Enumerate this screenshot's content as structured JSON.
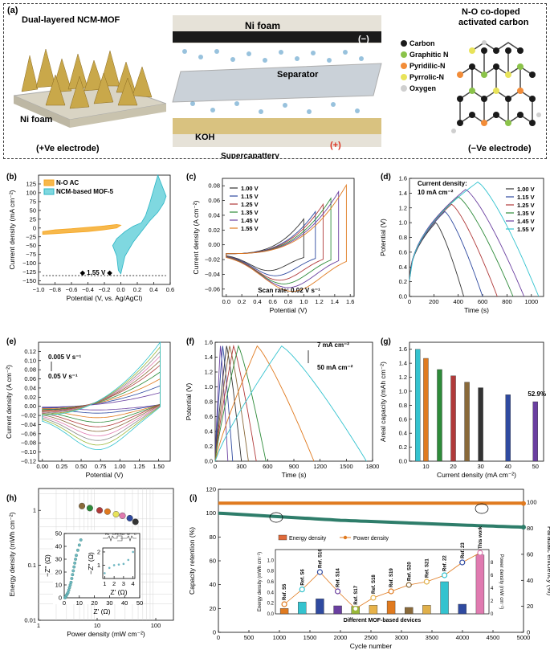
{
  "panel_a": {
    "panel_label": "(a)",
    "left_title": "Dual-layered NCM-MOF",
    "left_foam": "Ni foam",
    "left_electrode": "(+Ve electrode)",
    "center_foam": "Ni foam",
    "minus": "(−)",
    "separator": "Separator",
    "koh": "KOH",
    "supercapattery": "Supercapattery",
    "plus": "(+)",
    "right_title_1": "N-O co-doped",
    "right_title_2": "activated carbon",
    "right_electrode": "(−Ve electrode)",
    "legend": [
      {
        "label": "Carbon",
        "color": "#1a1a1a"
      },
      {
        "label": "Graphitic N",
        "color": "#8bc34a"
      },
      {
        "label": "Pyridilic-N",
        "color": "#f28c38"
      },
      {
        "label": "Pyrrolic-N",
        "color": "#e8e35a"
      },
      {
        "label": "Oxygen",
        "color": "#cfcfcf"
      }
    ],
    "colors": {
      "mof": "#c9a84a",
      "foam": "#d9d4c4",
      "ball": "#7fb3d5",
      "carbon": "#1a1a1a"
    }
  },
  "chart_data": [
    {
      "panel": "(b)",
      "type": "line",
      "xlabel": "Potential (V, vs. Ag/AgCl)",
      "ylabel": "Current density (mA cm⁻²)",
      "xlim": [
        -1.0,
        0.6
      ],
      "ylim": [
        -160,
        150
      ],
      "xticks": [
        -1.0,
        -0.8,
        -0.6,
        -0.4,
        -0.2,
        0.0,
        0.2,
        0.4,
        0.6
      ],
      "xticklabels": [
        "−1.0",
        "−0.8",
        "−0.6",
        "−0.4",
        "−0.2",
        "0.0",
        "0.2",
        "0.4",
        "0.6"
      ],
      "yticks": [
        -150,
        -125,
        -100,
        -75,
        -50,
        -25,
        0,
        25,
        50,
        75,
        100,
        125
      ],
      "yticklabels": [
        "−150",
        "−125",
        "−100",
        "−75",
        "−50",
        "−25",
        "0",
        "25",
        "50",
        "75",
        "100",
        "125"
      ],
      "legend": "top-left",
      "annotation": "1.55 V",
      "series": [
        {
          "name": "N-O AC",
          "color": "#f5a623",
          "fill": "#f7b84b",
          "x": [
            -0.95,
            -0.8,
            -0.6,
            -0.4,
            -0.2,
            -0.05,
            0.0,
            -0.05,
            -0.2,
            -0.4,
            -0.6,
            -0.8,
            -0.95
          ],
          "y": [
            -10,
            -5,
            -2,
            2,
            6,
            10,
            8,
            0,
            -5,
            -10,
            -13,
            -16,
            -18
          ]
        },
        {
          "name": "NCM-based MOF-5",
          "color": "#2bb5c5",
          "fill": "#7fd8e0",
          "x": [
            -0.05,
            0.05,
            0.15,
            0.25,
            0.3,
            0.35,
            0.4,
            0.45,
            0.5,
            0.55,
            0.52,
            0.45,
            0.35,
            0.25,
            0.15,
            0.05,
            0.0,
            -0.03,
            -0.05,
            -0.1,
            -0.05
          ],
          "y": [
            -30,
            -10,
            5,
            15,
            35,
            70,
            110,
            150,
            120,
            90,
            70,
            45,
            20,
            -10,
            -40,
            -80,
            -130,
            -120,
            -80,
            -50,
            -30
          ]
        }
      ]
    },
    {
      "panel": "(c)",
      "type": "line",
      "xlabel": "Potential (V)",
      "ylabel": "Current density (A cm⁻²)",
      "xlim": [
        -0.05,
        1.65
      ],
      "ylim": [
        -0.07,
        0.09
      ],
      "xticks": [
        0.0,
        0.2,
        0.4,
        0.6,
        0.8,
        1.0,
        1.2,
        1.4,
        1.6
      ],
      "xticklabels": [
        "0.0",
        "0.2",
        "0.4",
        "0.6",
        "0.8",
        "1.0",
        "1.2",
        "1.4",
        "1.6"
      ],
      "yticks": [
        -0.06,
        -0.04,
        -0.02,
        0.0,
        0.02,
        0.04,
        0.06,
        0.08
      ],
      "yticklabels": [
        "−0.06",
        "−0.04",
        "−0.02",
        "0.00",
        "0.02",
        "0.04",
        "0.06",
        "0.08"
      ],
      "legend": "top-left",
      "annotation": "Scan rate: 0.02 V s⁻¹",
      "series": [
        {
          "name": "1.00 V",
          "color": "#333333",
          "vmax": 1.0,
          "imax": 0.035,
          "imin": -0.035
        },
        {
          "name": "1.15 V",
          "color": "#2f4aa0",
          "vmax": 1.15,
          "imax": 0.045,
          "imin": -0.042
        },
        {
          "name": "1.25 V",
          "color": "#b13a3a",
          "vmax": 1.25,
          "imax": 0.055,
          "imin": -0.048
        },
        {
          "name": "1.35 V",
          "color": "#2e8b3a",
          "vmax": 1.35,
          "imax": 0.063,
          "imin": -0.053
        },
        {
          "name": "1.45 V",
          "color": "#6a3fa0",
          "vmax": 1.45,
          "imax": 0.072,
          "imin": -0.058
        },
        {
          "name": "1.55 V",
          "color": "#e07a1f",
          "vmax": 1.55,
          "imax": 0.081,
          "imin": -0.063
        }
      ]
    },
    {
      "panel": "(d)",
      "type": "line",
      "xlabel": "Time (s)",
      "ylabel": "Potential (V)",
      "xlim": [
        0,
        1100
      ],
      "ylim": [
        0,
        1.6
      ],
      "xticks": [
        0,
        200,
        400,
        600,
        800,
        1000
      ],
      "xticklabels": [
        "0",
        "200",
        "400",
        "600",
        "800",
        "1000"
      ],
      "yticks": [
        0.0,
        0.2,
        0.4,
        0.6,
        0.8,
        1.0,
        1.2,
        1.4,
        1.6
      ],
      "yticklabels": [
        "0.0",
        "0.2",
        "0.4",
        "0.6",
        "0.8",
        "1.0",
        "1.2",
        "1.4",
        "1.6"
      ],
      "legend": "top-right",
      "annotation_1": "Current density:",
      "annotation_2": "10 mA cm⁻²",
      "series": [
        {
          "name": "1.00 V",
          "color": "#333333",
          "vmax": 1.0,
          "tpeak": 215,
          "tend": 445
        },
        {
          "name": "1.15 V",
          "color": "#2f4aa0",
          "vmax": 1.15,
          "tpeak": 290,
          "tend": 600
        },
        {
          "name": "1.25 V",
          "color": "#b13a3a",
          "vmax": 1.25,
          "tpeak": 345,
          "tend": 720
        },
        {
          "name": "1.35 V",
          "color": "#2e8b3a",
          "vmax": 1.35,
          "tpeak": 400,
          "tend": 850
        },
        {
          "name": "1.45 V",
          "color": "#6a3fa0",
          "vmax": 1.45,
          "tpeak": 460,
          "tend": 940
        },
        {
          "name": "1.55 V",
          "color": "#34c3cf",
          "vmax": 1.55,
          "tpeak": 560,
          "tend": 1060
        }
      ]
    },
    {
      "panel": "(e)",
      "type": "line",
      "xlabel": "Potential (V)",
      "ylabel": "Current density (A cm⁻²)",
      "xlim": [
        -0.05,
        1.65
      ],
      "ylim": [
        -0.12,
        0.14
      ],
      "xticks": [
        0.0,
        0.25,
        0.5,
        0.75,
        1.0,
        1.25,
        1.5
      ],
      "xticklabels": [
        "0.00",
        "0.25",
        "0.50",
        "0.75",
        "1.00",
        "1.25",
        "1.50"
      ],
      "yticks": [
        -0.12,
        -0.1,
        -0.08,
        -0.06,
        -0.04,
        -0.02,
        0.0,
        0.02,
        0.04,
        0.06,
        0.08,
        0.1,
        0.12
      ],
      "yticklabels": [
        "−0.12",
        "−0.10",
        "−0.08",
        "−0.06",
        "−0.04",
        "−0.02",
        "0.00",
        "0.02",
        "0.04",
        "0.06",
        "0.08",
        "0.10",
        "0.12"
      ],
      "legend_top": "0.005 V s⁻¹",
      "legend_bottom": "0.05 V s⁻¹",
      "series": [
        {
          "color": "#6a3fa0",
          "imax": 0.03,
          "imin": -0.008
        },
        {
          "color": "#2f4aa0",
          "imax": 0.045,
          "imin": -0.015
        },
        {
          "color": "#e07a1f",
          "imax": 0.06,
          "imin": -0.025
        },
        {
          "color": "#2e8b3a",
          "imax": 0.075,
          "imin": -0.035
        },
        {
          "color": "#b13a3a",
          "imax": 0.09,
          "imin": -0.045
        },
        {
          "color": "#8a6a3a",
          "imax": 0.1,
          "imin": -0.055
        },
        {
          "color": "#e07ab0",
          "imax": 0.11,
          "imin": -0.065
        },
        {
          "color": "#888888",
          "imax": 0.12,
          "imin": -0.075
        },
        {
          "color": "#9ab83a",
          "imax": 0.13,
          "imin": -0.085
        },
        {
          "color": "#34c3cf",
          "imax": 0.14,
          "imin": -0.095
        }
      ]
    },
    {
      "panel": "(f)",
      "type": "line",
      "xlabel": "Time (s)",
      "ylabel": "Potential (V)",
      "xlim": [
        0,
        1800
      ],
      "ylim": [
        0,
        1.6
      ],
      "xticks": [
        0,
        300,
        600,
        900,
        1200,
        1500,
        1800
      ],
      "xticklabels": [
        "0",
        "300",
        "600",
        "900",
        "1200",
        "1500",
        "1800"
      ],
      "yticks": [
        0.0,
        0.2,
        0.4,
        0.6,
        0.8,
        1.0,
        1.2,
        1.4,
        1.6
      ],
      "yticklabels": [
        "0.0",
        "0.2",
        "0.4",
        "0.6",
        "0.8",
        "1.0",
        "1.2",
        "1.4",
        "1.6"
      ],
      "legend_top": "7 mA cm⁻²",
      "legend_bottom": "50 mA cm⁻²",
      "series": [
        {
          "color": "#6a3fa0",
          "tpeak": 60,
          "tend": 145
        },
        {
          "color": "#2f4aa0",
          "tpeak": 85,
          "tend": 200
        },
        {
          "color": "#333333",
          "tpeak": 130,
          "tend": 300
        },
        {
          "color": "#8a6a3a",
          "tpeak": 165,
          "tend": 380
        },
        {
          "color": "#b13a3a",
          "tpeak": 210,
          "tend": 470
        },
        {
          "color": "#2e8b3a",
          "tpeak": 265,
          "tend": 580
        },
        {
          "color": "#e07a1f",
          "tpeak": 480,
          "tend": 1130
        },
        {
          "color": "#34c3cf",
          "tpeak": 760,
          "tend": 1730
        }
      ]
    },
    {
      "panel": "(g)",
      "type": "bar",
      "xlabel": "Current density (mA cm⁻²)",
      "ylabel": "Areal capacity (mAh cm⁻²)",
      "xlim": [
        4,
        53
      ],
      "ylim": [
        0,
        1.7
      ],
      "xticks": [
        10,
        20,
        30,
        40,
        50
      ],
      "xticklabels": [
        "10",
        "20",
        "30",
        "40",
        "50"
      ],
      "yticks": [
        0.0,
        0.2,
        0.4,
        0.6,
        0.8,
        1.0,
        1.2,
        1.4,
        1.6
      ],
      "yticklabels": [
        "0.0",
        "0.2",
        "0.4",
        "0.6",
        "0.8",
        "1.0",
        "1.2",
        "1.4",
        "1.6"
      ],
      "annotation": "52.9%",
      "x": [
        7,
        10,
        15,
        20,
        25,
        30,
        40,
        50
      ],
      "values": [
        1.6,
        1.47,
        1.31,
        1.22,
        1.13,
        1.05,
        0.95,
        0.85
      ],
      "colors": [
        "#34c3cf",
        "#e07a1f",
        "#2e8b3a",
        "#b13a3a",
        "#8a6a3a",
        "#333333",
        "#2f4aa0",
        "#6a3fa0"
      ]
    },
    {
      "panel": "(h)",
      "type": "scatter",
      "xlabel": "Power density (mW cm⁻²)",
      "ylabel": "Energy density (mWh cm⁻²)",
      "xscale": "log",
      "yscale": "log",
      "xlim": [
        1,
        200
      ],
      "ylim": [
        0.01,
        2.5
      ],
      "xticks": [
        1,
        10,
        100
      ],
      "xticklabels": [
        "1",
        "10",
        "100"
      ],
      "yticks": [
        0.01,
        0.1,
        1
      ],
      "yticklabels": [
        "0.01",
        "0.1",
        "1"
      ],
      "x": [
        5.5,
        7.5,
        11,
        15,
        21,
        27,
        36,
        45
      ],
      "y": [
        1.2,
        1.1,
        1.0,
        0.95,
        0.85,
        0.8,
        0.72,
        0.62
      ],
      "colors": [
        "#8a6a3a",
        "#2e8b3a",
        "#b13a3a",
        "#e07a1f",
        "#e8e35a",
        "#e07ab0",
        "#2f4aa0",
        "#333333"
      ],
      "inset": {
        "xlabel": "Z' (Ω)",
        "ylabel": "−Z'' (Ω)",
        "xlim": [
          0,
          50
        ],
        "ylim": [
          0,
          50
        ],
        "xticks": [
          0,
          10,
          20,
          30,
          40,
          50
        ],
        "xticklabels": [
          "0",
          "10",
          "20",
          "30",
          "40",
          "50"
        ],
        "yticks": [
          0,
          10,
          20,
          30,
          40,
          50
        ],
        "yticklabels": [
          "0",
          "10",
          "20",
          "30",
          "40",
          "50"
        ],
        "x": [
          0.5,
          1,
          1.5,
          2,
          2.5,
          3,
          3.5,
          4,
          4.5,
          5,
          5.5,
          6,
          6.5,
          7,
          7.5,
          8,
          9,
          10,
          11
        ],
        "y": [
          0,
          1,
          2,
          3,
          4,
          6,
          8,
          10,
          12,
          15,
          18,
          21,
          24,
          27,
          30,
          33,
          37,
          41,
          45
        ],
        "zoom": {
          "xlabel": "Z' (Ω)",
          "ylabel": "−Z'' (Ω)",
          "xticks": [
            1,
            2,
            3,
            4
          ],
          "xticklabels": [
            "1",
            "2",
            "3",
            "4"
          ],
          "yticks": [
            1,
            2
          ],
          "yticklabels": [
            "1",
            "2"
          ],
          "x": [
            1.0,
            1.5,
            2.0,
            2.5,
            3.0,
            3.5,
            4.0
          ],
          "y": [
            0.4,
            0.8,
            1.0,
            1.05,
            1.1,
            1.4,
            2.0
          ]
        },
        "circuit_labels": [
          "Rs",
          "CPE",
          "Rct",
          "W",
          "C"
        ]
      }
    },
    {
      "panel": "(i)",
      "type": "scatter",
      "xlabel": "Cycle number",
      "ylabel_left": "Capacity retention (%)",
      "ylabel_right": "Faradaic efficiency (%)",
      "xlim": [
        0,
        5000
      ],
      "ylim_left": [
        0,
        120
      ],
      "ylim_right": [
        0,
        110
      ],
      "xticks": [
        0,
        500,
        1000,
        1500,
        2000,
        2500,
        3000,
        3500,
        4000,
        4500,
        5000
      ],
      "xticklabels": [
        "0",
        "500",
        "1000",
        "1500",
        "2000",
        "2500",
        "3000",
        "3500",
        "4000",
        "4500",
        "5000"
      ],
      "yticks_left": [
        0,
        20,
        40,
        60,
        80,
        100,
        120
      ],
      "yticklabels_left": [
        "0",
        "20",
        "40",
        "60",
        "80",
        "100",
        "120"
      ],
      "yticks_right": [
        0,
        20,
        40,
        60,
        80,
        100
      ],
      "yticklabels_right": [
        "0",
        "20",
        "40",
        "60",
        "80",
        "100"
      ],
      "series": [
        {
          "color": "#2e7d6a",
          "x": [
            0,
            1000,
            2000,
            3000,
            4000,
            5000
          ],
          "y": [
            100,
            97,
            94,
            92,
            90,
            88.2
          ]
        },
        {
          "color": "#e07a1f",
          "x": [
            0,
            1000,
            2000,
            3000,
            4000,
            5000
          ],
          "y": [
            99.5,
            99.4,
            99.3,
            99.2,
            99.2,
            99.1
          ]
        }
      ],
      "inset": {
        "xlabel": "Different MOF-based devices",
        "ylabel_left": "Energy density (mWh cm⁻²)",
        "ylabel_right": "Power density (mW cm⁻²)",
        "legend": [
          "Energy density",
          "Power density"
        ],
        "categories": [
          "Ref. S5",
          "Ref. S6",
          "Ref. S16",
          "Ref. S14",
          "Ref. S17",
          "Ref. S18",
          "Ref. S19",
          "Ref. S20",
          "Ref. S21",
          "Ref. 22",
          "Ref. 23",
          "This work"
        ],
        "energy": [
          0.1,
          0.22,
          0.28,
          0.15,
          0.14,
          0.16,
          0.24,
          0.12,
          0.16,
          0.6,
          0.18,
          1.1
        ],
        "power": [
          1.5,
          3.8,
          6.5,
          3.5,
          0.8,
          2.5,
          3.5,
          4.5,
          5.0,
          6.0,
          8.0,
          9.5
        ],
        "ylim_left": [
          0,
          1.2
        ],
        "ylim_right": [
          0,
          10
        ],
        "yticks_left": [
          0,
          0.2,
          0.4,
          0.6,
          0.8,
          1.0
        ],
        "yticklabels_left": [
          "0.0",
          "0.2",
          "0.4",
          "0.6",
          "0.8",
          "1.0"
        ],
        "yticks_right": [
          0,
          2,
          4,
          6,
          8
        ],
        "yticklabels_right": [
          "0",
          "2",
          "4",
          "6",
          "8"
        ],
        "bar_colors": [
          "#e07a1f",
          "#34c3cf",
          "#2f4aa0",
          "#6a3fa0",
          "#9ab83a",
          "#e8b34a",
          "#e07a1f",
          "#8a6a3a",
          "#e0b04a",
          "#34c3cf",
          "#2f4aa0",
          "#e07ab0"
        ]
      }
    }
  ]
}
